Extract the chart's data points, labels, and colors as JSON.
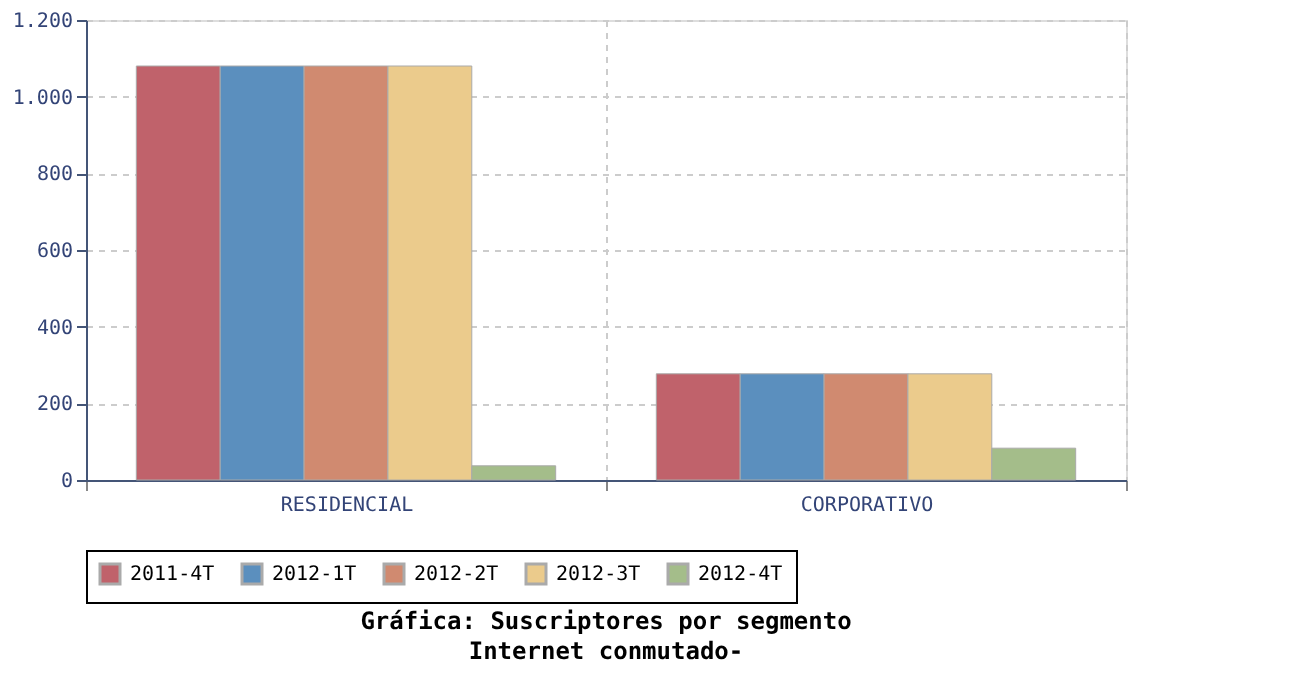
{
  "chart_data": {
    "type": "bar",
    "title": "Gráfica: Suscriptores por segmento",
    "subtitle": "Internet conmutado-",
    "categories": [
      "RESIDENCIAL",
      "CORPORATIVO"
    ],
    "series": [
      {
        "name": "2011-4T",
        "color": "#c0626b",
        "values": [
          1080,
          277
        ]
      },
      {
        "name": "2012-1T",
        "color": "#5b8fbe",
        "values": [
          1080,
          277
        ]
      },
      {
        "name": "2012-2T",
        "color": "#d08a70",
        "values": [
          1080,
          277
        ]
      },
      {
        "name": "2012-3T",
        "color": "#ebcb8c",
        "values": [
          1080,
          277
        ]
      },
      {
        "name": "2012-4T",
        "color": "#a4bd8a",
        "values": [
          37,
          83
        ]
      }
    ],
    "ylim": [
      0,
      1200
    ],
    "yticks": [
      0,
      200,
      400,
      600,
      800,
      {
        "value": 1000,
        "label": "1.000"
      },
      {
        "value": 1200,
        "label": "1.200"
      }
    ],
    "grid": true,
    "legend": "bottom"
  }
}
